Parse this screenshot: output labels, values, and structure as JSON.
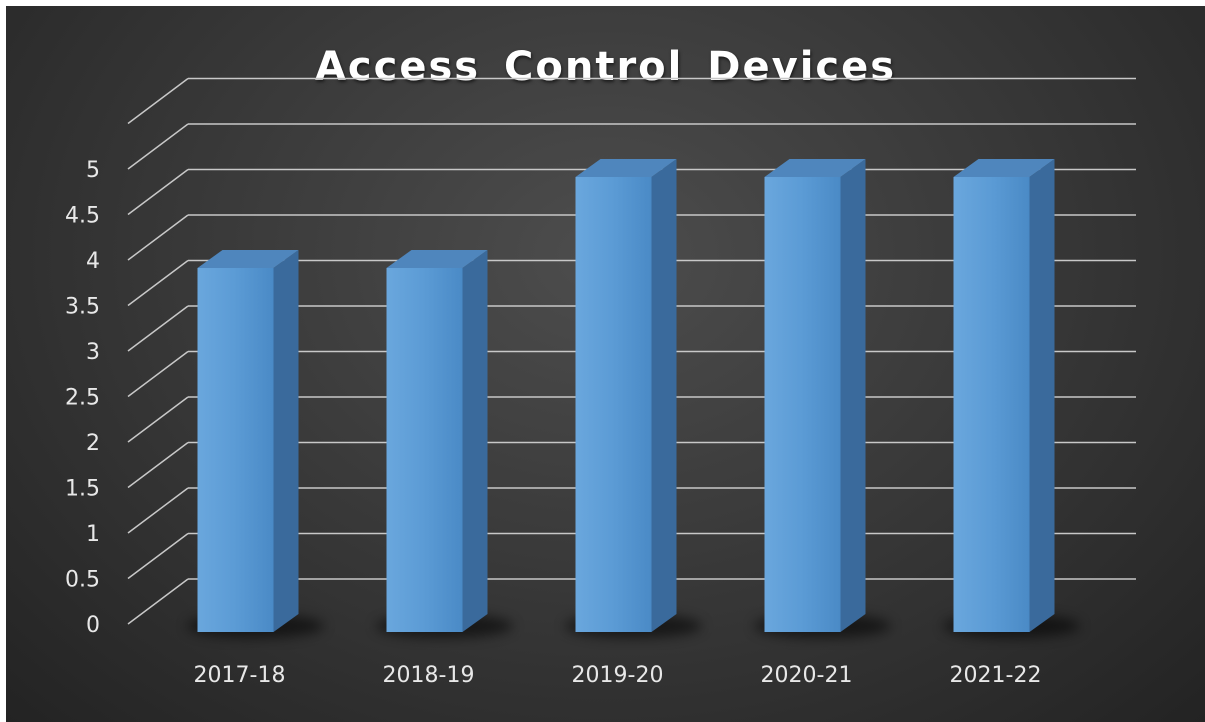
{
  "chart_data": {
    "type": "bar",
    "title": "Access Control Devices",
    "categories": [
      "2017-18",
      "2018-19",
      "2019-20",
      "2020-21",
      "2021-22"
    ],
    "values": [
      4,
      4,
      5,
      5,
      5
    ],
    "ylim": [
      0,
      5.5
    ],
    "yticks": [
      "0",
      "0.5",
      "1",
      "1.5",
      "2",
      "2.5",
      "3",
      "3.5",
      "4",
      "4.5",
      "5"
    ],
    "grid": true,
    "style": "3d-column",
    "colors": {
      "bar_front": "#5b9bd5",
      "bar_side": "#3a6a9c",
      "bar_top": "#4f86bd",
      "background": "#3a3a3a",
      "grid": "#c8c8c8",
      "text": "#ffffff"
    }
  }
}
